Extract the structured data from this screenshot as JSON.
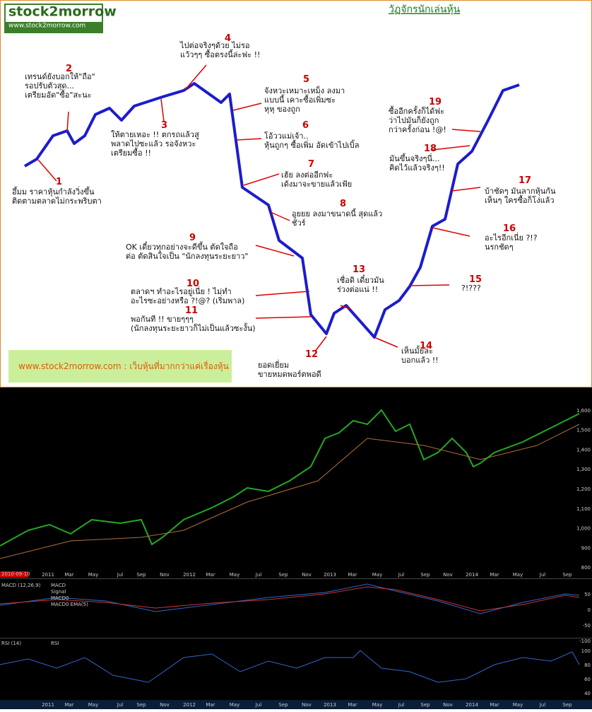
{
  "header": {
    "logo": "stock2morrow",
    "url": "www.stock2morrow.com",
    "title": "วัฏจักรนักเล่นหุ้น"
  },
  "annotations": [
    {
      "number": "1",
      "lines": [
        "อึ้มม ราคาหุ้นกำลังวิ่งขึ้น",
        "ติดตามตลาดไม่กระพริบตา"
      ]
    },
    {
      "number": "2",
      "lines": [
        "เทรนด์ยังบอกให้\"ถือ\"",
        "รอปรับตัวสุด...",
        "เตรียมอัด\"ซื้อ\"สะนะ"
      ]
    },
    {
      "number": "3",
      "lines": [
        "ให้ตายเหอะ !! ตกรถแล้วสู",
        "พลาดไปซะแล้ว รอจังหวะ",
        "เตรียมซื้อ !!"
      ]
    },
    {
      "number": "4",
      "lines": [
        "ไปต่อจริงๆด้วย ไม่รอ",
        "แว้วๆๆ ซื้อตรงนี้ล่ะฟะ !!"
      ]
    },
    {
      "number": "5",
      "lines": [
        "จังหวะเหมาะเหม็ง ลงมา",
        "แบบนี้ เคาะซื้อเพิ่มซะ",
        "หุหุ ของถูก"
      ]
    },
    {
      "number": "6",
      "lines": [
        "โอ้ววแม่เจ้า..",
        "หุ้นถูกๆ ซื้อเพิ่ม อัดเข้าไปเบิ้ล"
      ]
    },
    {
      "number": "7",
      "lines": [
        "เฮ้ย ลงต่ออีกฟะ",
        "เด้งมาจะขายแล้วเฟ้ย"
      ]
    },
    {
      "number": "8",
      "lines": [
        "อูยยย ลงมาขนาดนี้ สุดแล้ว",
        "ชัวร์"
      ]
    },
    {
      "number": "9",
      "lines": [
        "OK เดี๋ยวทุกอย่างจะดีขึ้น ตัดใจถือ",
        "ต่อ ตัดสินใจเป็น \"นักลงทุนระยะยาว\""
      ]
    },
    {
      "number": "10",
      "lines": [
        "ตลาดฯ ทำอะไรอยู่เนี่ย ! ไม่ทำ",
        "อะไรซะอย่างหรือ ?!@? (เริ่มพาล)"
      ]
    },
    {
      "number": "11",
      "lines": [
        "พอกันที !!  ขายๆๆๆ",
        "(นักลงทุนระยะยาวก็ไม่เป็นแล้วซะงั้น)"
      ]
    },
    {
      "number": "12",
      "lines": [
        "ยอดเยี่ยม",
        "ขายหมดพอร์ตพอดี"
      ]
    },
    {
      "number": "13",
      "lines": [
        "เชื่อดิ เดี๋ยวมัน",
        "ร่วงต่อแน่ !!"
      ]
    },
    {
      "number": "14",
      "lines": [
        "เห็นมั้ยล่ะ",
        "บอกแล้ว !!"
      ]
    },
    {
      "number": "15",
      "lines": [
        "?!???"
      ]
    },
    {
      "number": "16",
      "lines": [
        "อะไรอีกเนี่ย ?!?",
        "นรกชัดๆ"
      ]
    },
    {
      "number": "17",
      "lines": [
        "บ้าชัดๆ มันลากหุ้นกัน",
        "เห็นๆ ใครซื้อก็โง่แล้ว"
      ]
    },
    {
      "number": "18",
      "lines": [
        "มันขึ้นจริงๆนี่...",
        "คิดไว้แล้วจริงๆ!!"
      ]
    },
    {
      "number": "19",
      "lines": [
        "ซื้ออีกครั้งก็ได้ฟะ",
        "ว่าไปมันก็ยังถูก",
        "กว่าครั้งก่อน !@!"
      ]
    }
  ],
  "footer": "www.stock2morrow.com  :  เว็บหุ้นที่มากกว่าแค่เรื่องหุ้น",
  "trading_chart": {
    "date_label": "2010-09-10",
    "x_labels": [
      "2011",
      "Mar",
      "May",
      "Jul",
      "Sep",
      "Nov",
      "2012",
      "Mar",
      "May",
      "Jul",
      "Sep",
      "Nov",
      "2013",
      "Mar",
      "May",
      "Jul",
      "Sep",
      "Nov",
      "2014",
      "Mar",
      "May",
      "Jul",
      "Sep"
    ],
    "price_labels": [
      "1,600",
      "1,500",
      "1,400",
      "1,300",
      "1,200",
      "1,100",
      "1,000",
      "900",
      "800"
    ],
    "macd": {
      "title": "MACD (12,26,9)",
      "legend": [
        "MACD",
        "Signal",
        "MACD0",
        "MACD0 EMA(5)"
      ],
      "labels": [
        "50",
        "0",
        "-50",
        "-100"
      ]
    },
    "rsi": {
      "title": "RSI (14)",
      "legend": [
        "RSI"
      ],
      "labels": [
        "100",
        "80",
        "60",
        "40"
      ]
    }
  }
}
